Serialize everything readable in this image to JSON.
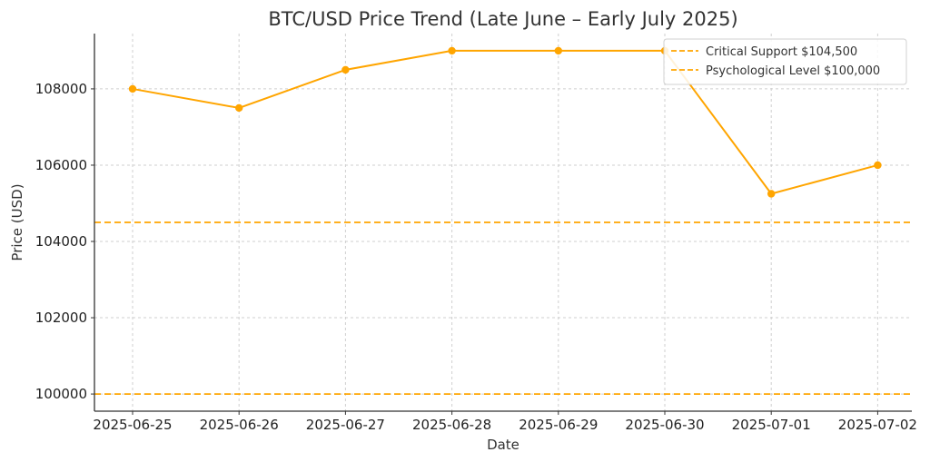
{
  "chart_data": {
    "type": "line",
    "title": "BTC/USD Price Trend (Late June – Early July 2025)",
    "xlabel": "Date",
    "ylabel": "Price (USD)",
    "categories": [
      "2025-06-25",
      "2025-06-26",
      "2025-06-27",
      "2025-06-28",
      "2025-06-29",
      "2025-06-30",
      "2025-07-01",
      "2025-07-02"
    ],
    "series": [
      {
        "values": [
          108000,
          107500,
          108500,
          109000,
          109000,
          109000,
          105250,
          106000
        ],
        "color": "#FFA500"
      }
    ],
    "reference_lines": [
      {
        "name": "Critical Support $104,500",
        "value": 104500,
        "color": "#FFA500",
        "style": "dashed"
      },
      {
        "name": "Psychological Level $100,000",
        "value": 100000,
        "color": "#FFA500",
        "style": "dashed"
      }
    ],
    "yticks": [
      100000,
      102000,
      104000,
      106000,
      108000
    ],
    "ylim": [
      99550,
      109450
    ],
    "grid": true,
    "legend_position": "top-right"
  }
}
